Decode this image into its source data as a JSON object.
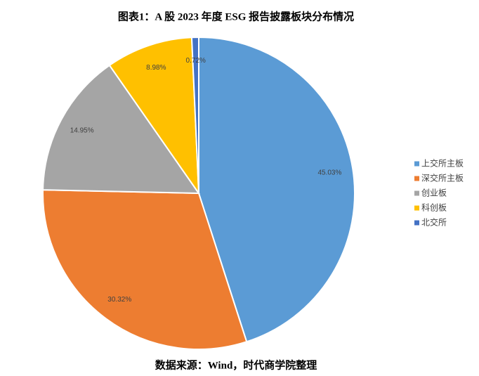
{
  "chart_data": {
    "type": "pie",
    "title": "图表1：A 股 2023 年度 ESG 报告披露板块分布情况",
    "categories": [
      "上交所主板",
      "深交所主板",
      "创业板",
      "科创板",
      "北交所"
    ],
    "values": [
      45.03,
      30.32,
      14.95,
      8.98,
      0.72
    ],
    "value_labels": [
      "45.03%",
      "30.32%",
      "14.95%",
      "8.98%",
      "0.72%"
    ],
    "colors": [
      "#5b9bd5",
      "#ed7d31",
      "#a5a5a5",
      "#ffc000",
      "#4472c4"
    ],
    "legend": "right",
    "source": "数据来源：Wind，时代商学院整理"
  }
}
